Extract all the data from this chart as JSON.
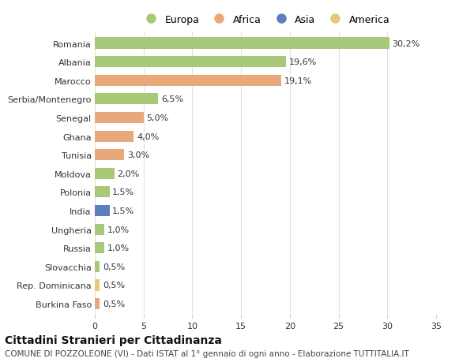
{
  "countries": [
    "Romania",
    "Albania",
    "Marocco",
    "Serbia/Montenegro",
    "Senegal",
    "Ghana",
    "Tunisia",
    "Moldova",
    "Polonia",
    "India",
    "Ungheria",
    "Russia",
    "Slovacchia",
    "Rep. Dominicana",
    "Burkina Faso"
  ],
  "values": [
    30.2,
    19.6,
    19.1,
    6.5,
    5.0,
    4.0,
    3.0,
    2.0,
    1.5,
    1.5,
    1.0,
    1.0,
    0.5,
    0.5,
    0.5
  ],
  "labels": [
    "30,2%",
    "19,6%",
    "19,1%",
    "6,5%",
    "5,0%",
    "4,0%",
    "3,0%",
    "2,0%",
    "1,5%",
    "1,5%",
    "1,0%",
    "1,0%",
    "0,5%",
    "0,5%",
    "0,5%"
  ],
  "continents": [
    "Europa",
    "Europa",
    "Africa",
    "Europa",
    "Africa",
    "Africa",
    "Africa",
    "Europa",
    "Europa",
    "Asia",
    "Europa",
    "Europa",
    "Europa",
    "America",
    "Africa"
  ],
  "continent_colors": {
    "Europa": "#a8c87a",
    "Africa": "#e8a97a",
    "Asia": "#5b7fbf",
    "America": "#e8c87a"
  },
  "legend_order": [
    "Europa",
    "Africa",
    "Asia",
    "America"
  ],
  "title": "Cittadini Stranieri per Cittadinanza",
  "subtitle": "COMUNE DI POZZOLEONE (VI) - Dati ISTAT al 1° gennaio di ogni anno - Elaborazione TUTTITALIA.IT",
  "xlim": [
    0,
    35
  ],
  "xticks": [
    0,
    5,
    10,
    15,
    20,
    25,
    30,
    35
  ],
  "background_color": "#ffffff",
  "grid_color": "#e0e0e0",
  "bar_height": 0.6,
  "label_fontsize": 8,
  "title_fontsize": 10,
  "subtitle_fontsize": 7.5,
  "tick_fontsize": 8,
  "legend_fontsize": 9
}
